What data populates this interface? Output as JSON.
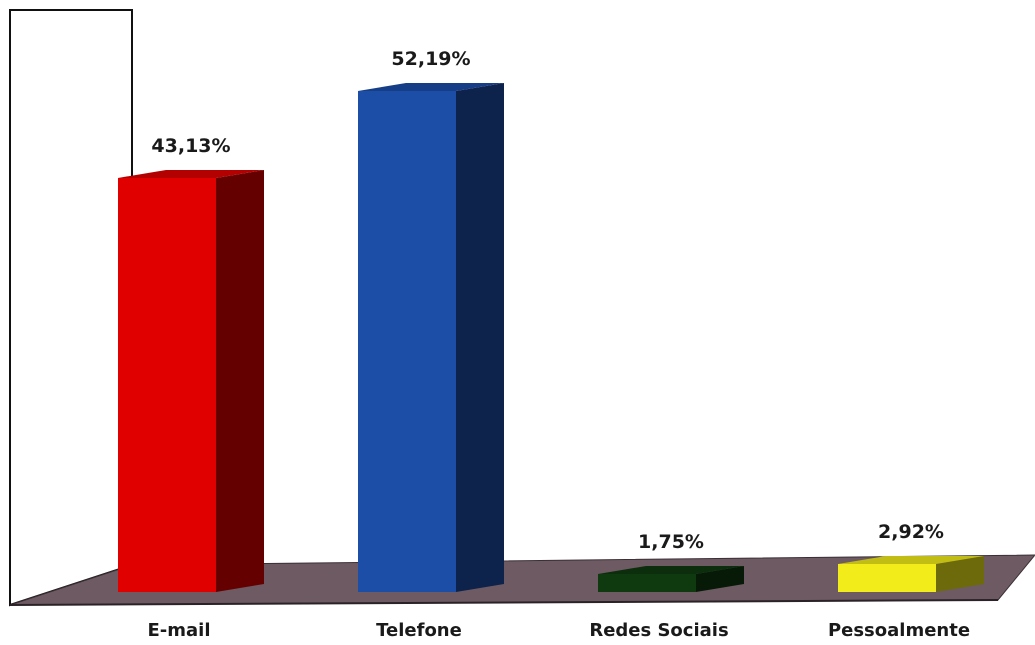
{
  "chart_data": {
    "type": "bar",
    "categories": [
      "E-mail",
      "Telefone",
      "Redes Sociais",
      "Pessoalmente"
    ],
    "values": [
      43.13,
      52.19,
      1.75,
      2.92
    ],
    "value_labels": [
      "43,13%",
      "52,19%",
      "1,75%",
      "2,92%"
    ],
    "colors": [
      "#e00000",
      "#1c4ea8",
      "#0f3a10",
      "#f2ec1a"
    ],
    "ylim": [
      0,
      60
    ],
    "style": "3d",
    "grid": false,
    "legend": "none"
  }
}
